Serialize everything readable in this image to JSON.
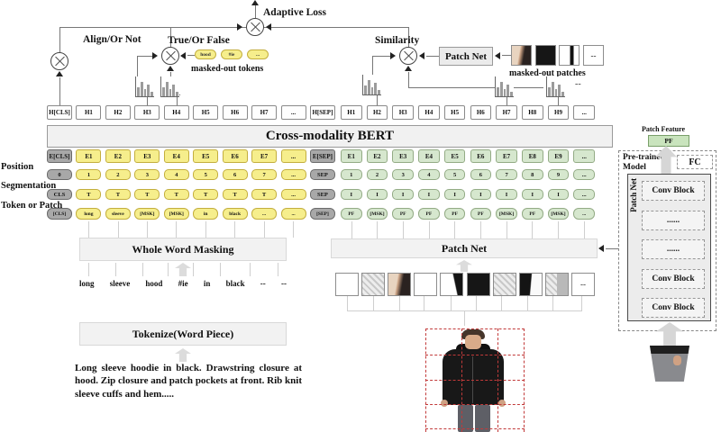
{
  "header": {
    "adaptive_loss": "Adaptive Loss",
    "align_or_not": "Align/Or Not",
    "true_or_false": "True/Or False",
    "similarity": "Similarity",
    "patch_net": "Patch Net",
    "masked_out_tokens": "masked-out tokens",
    "masked_out_patches": "masked-out patches",
    "dashes": "--"
  },
  "masked_tokens": [
    {
      "t": "hood",
      "k": "ypill"
    },
    {
      "t": "#ie",
      "k": "ypill"
    },
    {
      "t": "...",
      "k": "ypill"
    }
  ],
  "masked_patches": [
    {
      "t": "",
      "k": "p-head"
    },
    {
      "t": "",
      "k": "p-black"
    },
    {
      "t": "",
      "k": "p-bar"
    },
    {
      "t": "--",
      "k": "p-dots"
    }
  ],
  "bert": {
    "title": "Cross-modality BERT"
  },
  "row_labels": {
    "position": "Position",
    "segmentation": "Segmentation",
    "token_or_patch": "Token or Patch"
  },
  "rows": {
    "hidden_left": [
      {
        "t": "H[CLS]",
        "k": "w"
      },
      {
        "t": "H1",
        "k": "w"
      },
      {
        "t": "H2",
        "k": "w"
      },
      {
        "t": "H3",
        "k": "w"
      },
      {
        "t": "H4",
        "k": "w"
      },
      {
        "t": "H5",
        "k": "w"
      },
      {
        "t": "H6",
        "k": "w"
      },
      {
        "t": "H7",
        "k": "w"
      },
      {
        "t": "...",
        "k": "w"
      },
      {
        "t": "H[SEP]",
        "k": "w"
      }
    ],
    "hidden_right": [
      {
        "t": "H1",
        "k": "w"
      },
      {
        "t": "H2",
        "k": "w"
      },
      {
        "t": "H3",
        "k": "w"
      },
      {
        "t": "H4",
        "k": "w"
      },
      {
        "t": "H5",
        "k": "w"
      },
      {
        "t": "H6",
        "k": "w"
      },
      {
        "t": "H7",
        "k": "w"
      },
      {
        "t": "H8",
        "k": "w"
      },
      {
        "t": "H9",
        "k": "w"
      },
      {
        "t": "...",
        "k": "w"
      }
    ],
    "embed_left": [
      {
        "t": "E[CLS]",
        "k": "g"
      },
      {
        "t": "E1",
        "k": "y"
      },
      {
        "t": "E2",
        "k": "y"
      },
      {
        "t": "E3",
        "k": "y"
      },
      {
        "t": "E4",
        "k": "y"
      },
      {
        "t": "E5",
        "k": "y"
      },
      {
        "t": "E6",
        "k": "y"
      },
      {
        "t": "E7",
        "k": "y"
      },
      {
        "t": "...",
        "k": "y"
      },
      {
        "t": "E[SEP]",
        "k": "g"
      }
    ],
    "embed_right": [
      {
        "t": "E1",
        "k": "gr"
      },
      {
        "t": "E2",
        "k": "gr"
      },
      {
        "t": "E3",
        "k": "gr"
      },
      {
        "t": "E4",
        "k": "gr"
      },
      {
        "t": "E5",
        "k": "gr"
      },
      {
        "t": "E6",
        "k": "gr"
      },
      {
        "t": "E7",
        "k": "gr"
      },
      {
        "t": "E8",
        "k": "gr"
      },
      {
        "t": "E9",
        "k": "gr"
      },
      {
        "t": "...",
        "k": "gr"
      }
    ],
    "pos_left": [
      {
        "t": "0",
        "k": "g"
      },
      {
        "t": "1",
        "k": "y"
      },
      {
        "t": "2",
        "k": "y"
      },
      {
        "t": "3",
        "k": "y"
      },
      {
        "t": "4",
        "k": "y"
      },
      {
        "t": "5",
        "k": "y"
      },
      {
        "t": "6",
        "k": "y"
      },
      {
        "t": "7",
        "k": "y"
      },
      {
        "t": "...",
        "k": "y"
      },
      {
        "t": "SEP",
        "k": "g"
      }
    ],
    "pos_right": [
      {
        "t": "1",
        "k": "gr"
      },
      {
        "t": "2",
        "k": "gr"
      },
      {
        "t": "3",
        "k": "gr"
      },
      {
        "t": "4",
        "k": "gr"
      },
      {
        "t": "5",
        "k": "gr"
      },
      {
        "t": "6",
        "k": "gr"
      },
      {
        "t": "7",
        "k": "gr"
      },
      {
        "t": "8",
        "k": "gr"
      },
      {
        "t": "9",
        "k": "gr"
      },
      {
        "t": "...",
        "k": "gr"
      }
    ],
    "seg_left": [
      {
        "t": "CLS",
        "k": "g"
      },
      {
        "t": "T",
        "k": "y"
      },
      {
        "t": "T",
        "k": "y"
      },
      {
        "t": "T",
        "k": "y"
      },
      {
        "t": "T",
        "k": "y"
      },
      {
        "t": "T",
        "k": "y"
      },
      {
        "t": "T",
        "k": "y"
      },
      {
        "t": "T",
        "k": "y"
      },
      {
        "t": "...",
        "k": "y"
      },
      {
        "t": "SEP",
        "k": "g"
      }
    ],
    "seg_right": [
      {
        "t": "I",
        "k": "gr"
      },
      {
        "t": "I",
        "k": "gr"
      },
      {
        "t": "I",
        "k": "gr"
      },
      {
        "t": "I",
        "k": "gr"
      },
      {
        "t": "I",
        "k": "gr"
      },
      {
        "t": "I",
        "k": "gr"
      },
      {
        "t": "I",
        "k": "gr"
      },
      {
        "t": "I",
        "k": "gr"
      },
      {
        "t": "I",
        "k": "gr"
      },
      {
        "t": "...",
        "k": "gr"
      }
    ],
    "tok_left": [
      {
        "t": "[CLS]",
        "k": "g"
      },
      {
        "t": "long",
        "k": "y"
      },
      {
        "t": "sleeve",
        "k": "y"
      },
      {
        "t": "[MSK]",
        "k": "y"
      },
      {
        "t": "[MSK]",
        "k": "y"
      },
      {
        "t": "in",
        "k": "y"
      },
      {
        "t": "black",
        "k": "y"
      },
      {
        "t": "...",
        "k": "y"
      },
      {
        "t": "...",
        "k": "y"
      },
      {
        "t": "[SEP]",
        "k": "g"
      }
    ],
    "tok_right": [
      {
        "t": "PF",
        "k": "gr"
      },
      {
        "t": "[MSK]",
        "k": "gr"
      },
      {
        "t": "PF",
        "k": "gr"
      },
      {
        "t": "PF",
        "k": "gr"
      },
      {
        "t": "PF",
        "k": "gr"
      },
      {
        "t": "PF",
        "k": "gr"
      },
      {
        "t": "[MSK]",
        "k": "gr"
      },
      {
        "t": "PF",
        "k": "gr"
      },
      {
        "t": "[MSK]",
        "k": "gr"
      },
      {
        "t": "...",
        "k": "gr"
      }
    ]
  },
  "wwm": {
    "title": "Whole Word Masking",
    "tokens": [
      "long",
      "sleeve",
      "hood",
      "#ie",
      "in",
      "black",
      "--",
      "--"
    ]
  },
  "tokenize": {
    "title": "Tokenize(Word Piece)"
  },
  "patchnet_mid": {
    "title": "Patch Net"
  },
  "mid_patches": [
    {
      "t": "",
      "k": "p-blank"
    },
    {
      "t": "",
      "k": "p-hatch"
    },
    {
      "t": "",
      "k": "p-head"
    },
    {
      "t": "",
      "k": "p-blank"
    },
    {
      "t": "",
      "k": "p-edge"
    },
    {
      "t": "",
      "k": "p-black"
    },
    {
      "t": "",
      "k": "p-hatch"
    },
    {
      "t": "",
      "k": "p-halfblack"
    },
    {
      "t": "",
      "k": "p-hatchsplit"
    },
    {
      "t": "--",
      "k": "p-dots"
    }
  ],
  "description": "Long sleeve hoodie in black. Drawstring closure at hood. Zip closure and patch pockets at front. Rib knit sleeve cuffs and hem.....",
  "side_panel": {
    "pretrained_model": "Pre-trained Model",
    "fc": "FC",
    "patch_net": "Patch Net",
    "patch_feature": "Patch Feature",
    "pf": "PF",
    "blocks": [
      "Conv Block",
      "......",
      "......",
      "Conv Block",
      "Conv Block"
    ]
  }
}
